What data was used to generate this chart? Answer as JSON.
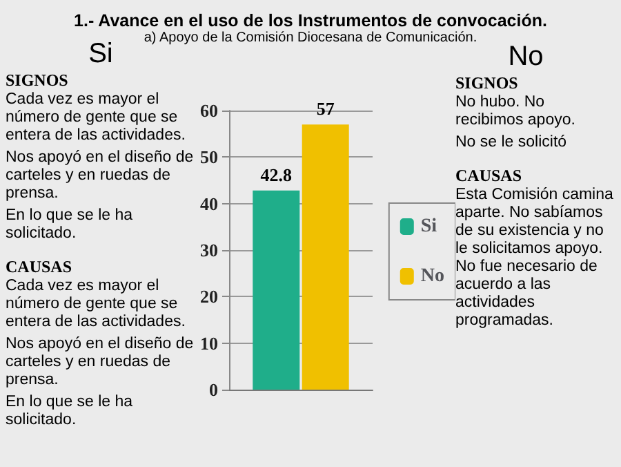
{
  "chart_data": {
    "type": "bar",
    "title": "1.- Avance en el uso de los Instrumentos de convocación.",
    "subtitle": "a) Apoyo de la Comisión Diocesana de Comunicación.",
    "categories": [
      null
    ],
    "series": [
      {
        "name": "Si",
        "color": "#1fae8a",
        "values": [
          42.8
        ]
      },
      {
        "name": "No",
        "color": "#f0c000",
        "values": [
          57
        ]
      }
    ],
    "data_labels": true,
    "ylim": [
      0,
      60
    ],
    "yticks": [
      0,
      10,
      20,
      30,
      40,
      50,
      60
    ],
    "grid": "y",
    "legend": "right",
    "annotations": [
      "Si",
      "SIGNOS",
      "Cada vez es mayor el número de gente que se entera de las actividades.",
      "Nos apoyó en el diseño de carteles y en ruedas de prensa.",
      "En lo que se le ha solicitado.",
      "CAUSAS",
      "Cada vez es mayor el número de gente que se entera de las actividades.",
      "Nos apoyó en el diseño de carteles y en ruedas de prensa.",
      "En lo que se le ha solicitado.",
      "No",
      "SIGNOS",
      "No hubo. No recibimos apoyo.",
      "No se le solicitó",
      "CAUSAS",
      "Esta Comisión camina aparte. No sabíamos de su existencia y no le solicitamos apoyo. No fue necesario de acuerdo a las actividades programadas."
    ]
  }
}
